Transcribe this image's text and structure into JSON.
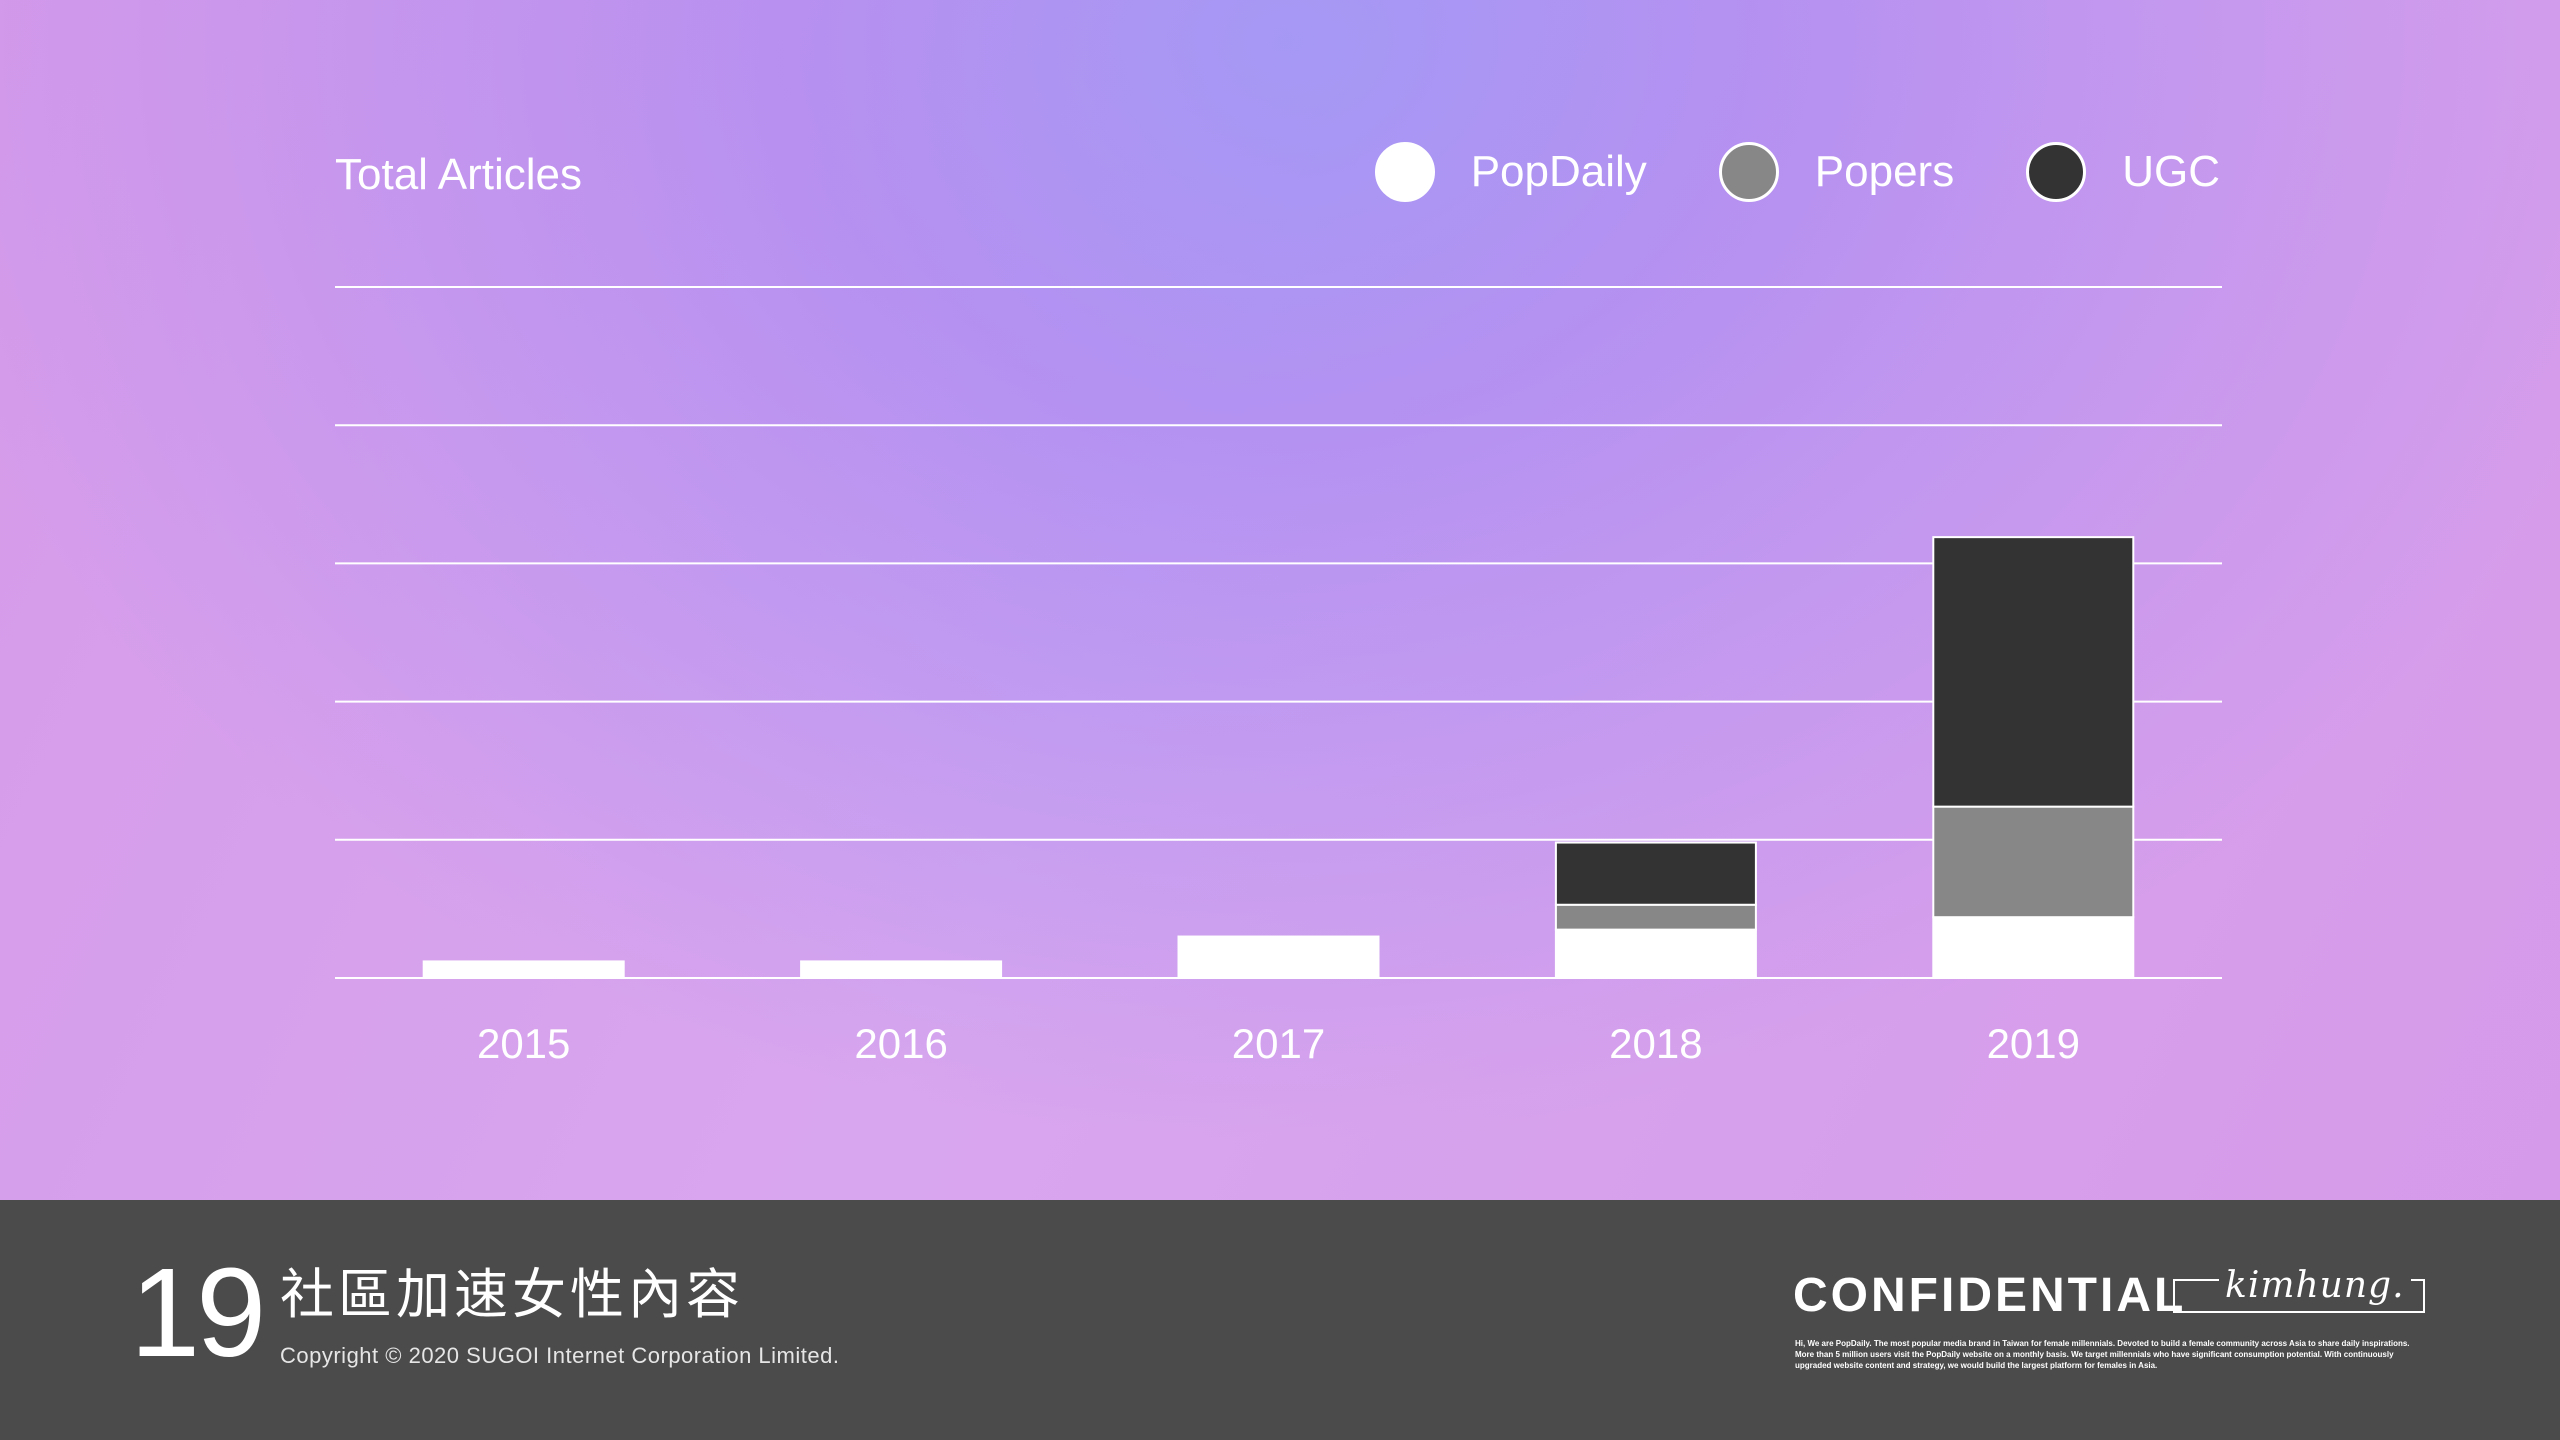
{
  "chart_data": {
    "type": "bar",
    "stacked": true,
    "title": "Total Articles",
    "categories": [
      "2015",
      "2016",
      "2017",
      "2018",
      "2019"
    ],
    "series": [
      {
        "name": "PopDaily",
        "color": "#ffffff",
        "values": [
          0.12,
          0.12,
          0.3,
          0.35,
          0.44
        ]
      },
      {
        "name": "Popers",
        "color": "#878787",
        "values": [
          0,
          0,
          0,
          0.18,
          0.8
        ]
      },
      {
        "name": "UGC",
        "color": "#333333",
        "values": [
          0,
          0,
          0,
          0.45,
          1.95
        ]
      }
    ],
    "ylim": [
      0,
      5
    ],
    "grid": true,
    "legend_position": "top-right",
    "y_tick_labels_shown": false
  },
  "legend": {
    "items": [
      {
        "label": "PopDaily",
        "color": "#ffffff"
      },
      {
        "label": "Popers",
        "color": "#878787"
      },
      {
        "label": "UGC",
        "color": "#333333"
      }
    ]
  },
  "footer": {
    "page_number": "19",
    "deck_title": "社區加速女性內容",
    "copyright": "Copyright © 2020 SUGOI Internet Corporation Limited.",
    "confidential": "CONFIDENTIAL",
    "signature": "kimhung.",
    "about": "Hi, We are PopDaily. The most popular media brand in Taiwan for female millennials. Devoted to build a female community across Asia to share daily inspirations. More than 5 million users visit the PopDaily website on a monthly basis. We target millennials who have significant consumption potential. With continuously upgraded website content and strategy, we would build the largest platform for females in Asia."
  },
  "colors": {
    "footer_bg": "#4b4b4b",
    "gridline": "#ffffff"
  }
}
